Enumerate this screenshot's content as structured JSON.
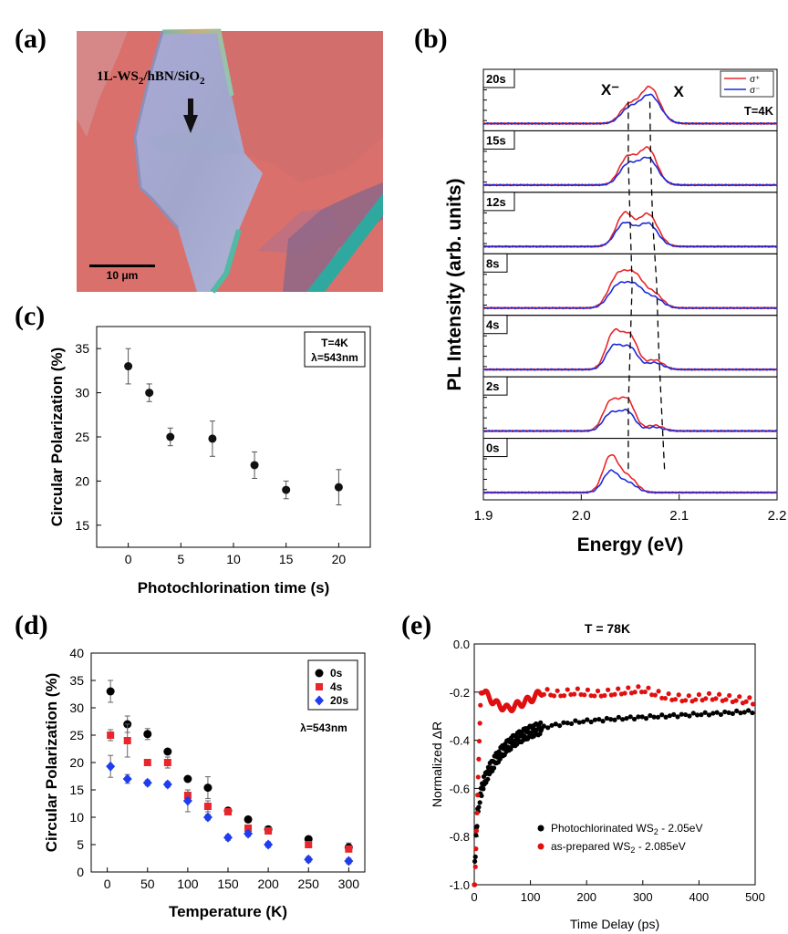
{
  "panel_labels": {
    "a": "(a)",
    "b": "(b)",
    "c": "(c)",
    "d": "(d)",
    "e": "(e)"
  },
  "colors": {
    "red": "#e8262b",
    "blue": "#1d2ad8",
    "black": "#000000",
    "diamond_blue": "#1e3cf0",
    "e_red": "#e01010",
    "substrate": "#d9706b",
    "flake": "#a8a9d2",
    "stripe": "#2fa8a0"
  },
  "micrograph": {
    "label_main": "1L-WS",
    "label_sub": "2",
    "label_mid": "/hBN/SiO",
    "label_sub2": "2",
    "scalebar_text": "10 μm"
  },
  "chart_data": [
    {
      "panel": "b",
      "type": "line",
      "xlabel": "Energy (eV)",
      "ylabel": "PL Intensity (arb. units)",
      "xlim": [
        1.9,
        2.2
      ],
      "xticks": [
        "1.9",
        "2.0",
        "2.1",
        "2.2"
      ],
      "temperature": "T=4K",
      "legend": {
        "series": [
          "σ⁺",
          "σ⁻"
        ],
        "placement": "top-right"
      },
      "peak_labels": {
        "trion": "X⁻",
        "exciton": "X"
      },
      "subpanels": [
        {
          "time": "20s",
          "sigma_plus_peaks": [
            {
              "e": 2.048,
              "a": 0.45,
              "w": 0.012
            },
            {
              "e": 2.07,
              "a": 0.95,
              "w": 0.014
            }
          ],
          "sigma_minus_peaks": [
            {
              "e": 2.048,
              "a": 0.35,
              "w": 0.012
            },
            {
              "e": 2.07,
              "a": 0.75,
              "w": 0.015
            }
          ]
        },
        {
          "time": "15s",
          "sigma_plus_peaks": [
            {
              "e": 2.047,
              "a": 0.7,
              "w": 0.012
            },
            {
              "e": 2.068,
              "a": 0.95,
              "w": 0.013
            }
          ],
          "sigma_minus_peaks": [
            {
              "e": 2.047,
              "a": 0.5,
              "w": 0.012
            },
            {
              "e": 2.068,
              "a": 0.7,
              "w": 0.014
            }
          ]
        },
        {
          "time": "12s",
          "sigma_plus_peaks": [
            {
              "e": 2.044,
              "a": 0.85,
              "w": 0.012
            },
            {
              "e": 2.068,
              "a": 0.85,
              "w": 0.014
            }
          ],
          "sigma_minus_peaks": [
            {
              "e": 2.044,
              "a": 0.6,
              "w": 0.013
            },
            {
              "e": 2.068,
              "a": 0.6,
              "w": 0.014
            }
          ]
        },
        {
          "time": "8s",
          "sigma_plus_peaks": [
            {
              "e": 2.037,
              "a": 0.8,
              "w": 0.013
            },
            {
              "e": 2.055,
              "a": 0.8,
              "w": 0.013
            },
            {
              "e": 2.075,
              "a": 0.35,
              "w": 0.012
            }
          ],
          "sigma_minus_peaks": [
            {
              "e": 2.037,
              "a": 0.55,
              "w": 0.013
            },
            {
              "e": 2.055,
              "a": 0.55,
              "w": 0.013
            },
            {
              "e": 2.075,
              "a": 0.25,
              "w": 0.012
            }
          ]
        },
        {
          "time": "4s",
          "sigma_plus_peaks": [
            {
              "e": 2.033,
              "a": 0.95,
              "w": 0.011
            },
            {
              "e": 2.05,
              "a": 0.85,
              "w": 0.011
            },
            {
              "e": 2.075,
              "a": 0.25,
              "w": 0.012
            }
          ],
          "sigma_minus_peaks": [
            {
              "e": 2.033,
              "a": 0.6,
              "w": 0.011
            },
            {
              "e": 2.05,
              "a": 0.55,
              "w": 0.011
            },
            {
              "e": 2.075,
              "a": 0.18,
              "w": 0.012
            }
          ]
        },
        {
          "time": "2s",
          "sigma_plus_peaks": [
            {
              "e": 2.03,
              "a": 0.75,
              "w": 0.011
            },
            {
              "e": 2.047,
              "a": 0.8,
              "w": 0.011
            },
            {
              "e": 2.075,
              "a": 0.15,
              "w": 0.012
            }
          ],
          "sigma_minus_peaks": [
            {
              "e": 2.03,
              "a": 0.45,
              "w": 0.011
            },
            {
              "e": 2.047,
              "a": 0.5,
              "w": 0.011
            },
            {
              "e": 2.075,
              "a": 0.1,
              "w": 0.012
            }
          ]
        },
        {
          "time": "0s",
          "sigma_plus_peaks": [
            {
              "e": 2.03,
              "a": 0.95,
              "w": 0.011
            },
            {
              "e": 2.048,
              "a": 0.4,
              "w": 0.012
            }
          ],
          "sigma_minus_peaks": [
            {
              "e": 2.03,
              "a": 0.55,
              "w": 0.011
            },
            {
              "e": 2.048,
              "a": 0.25,
              "w": 0.012
            }
          ]
        }
      ],
      "trion_guide": [
        {
          "time": "0s",
          "energy": 2.048
        },
        {
          "time": "2s",
          "energy": 2.048
        },
        {
          "time": "4s",
          "energy": 2.05
        },
        {
          "time": "8s",
          "energy": 2.052
        },
        {
          "time": "12s",
          "energy": 2.05
        },
        {
          "time": "15s",
          "energy": 2.048
        },
        {
          "time": "20s",
          "energy": 2.048
        }
      ],
      "exciton_guide": [
        {
          "time": "0s",
          "energy": 2.085
        },
        {
          "time": "2s",
          "energy": 2.082
        },
        {
          "time": "4s",
          "energy": 2.079
        },
        {
          "time": "8s",
          "energy": 2.077
        },
        {
          "time": "12s",
          "energy": 2.073
        },
        {
          "time": "15s",
          "energy": 2.071
        },
        {
          "time": "20s",
          "energy": 2.07
        }
      ]
    },
    {
      "panel": "c",
      "type": "scatter",
      "xlabel": "Photochlorination time (s)",
      "ylabel": "Circular Polarization (%)",
      "xlim": [
        -3,
        23
      ],
      "ylim": [
        12.5,
        37.5
      ],
      "xticks": [
        "0",
        "5",
        "10",
        "15",
        "20"
      ],
      "yticks": [
        "15",
        "20",
        "25",
        "30",
        "35"
      ],
      "annotation": [
        "T=4K",
        "λ=543nm"
      ],
      "x": [
        0,
        2,
        4,
        8,
        12,
        15,
        20
      ],
      "y": [
        33.0,
        30.0,
        25.0,
        24.8,
        21.8,
        19.0,
        19.3
      ],
      "err": [
        2.0,
        1.0,
        1.0,
        2.0,
        1.5,
        1.0,
        2.0
      ]
    },
    {
      "panel": "d",
      "type": "scatter",
      "xlabel": "Temperature (K)",
      "ylabel": "Circular Polarization (%)",
      "xlim": [
        -20,
        320
      ],
      "ylim": [
        0,
        40
      ],
      "xticks": [
        "0",
        "50",
        "100",
        "150",
        "200",
        "250",
        "300"
      ],
      "yticks": [
        "0",
        "5",
        "10",
        "15",
        "20",
        "25",
        "30",
        "35",
        "40"
      ],
      "annotation": "λ=543nm",
      "legend_placement": "top-right",
      "series": [
        {
          "name": "0s",
          "marker": "circle",
          "x": [
            4,
            25,
            50,
            75,
            100,
            125,
            150,
            175,
            200,
            250,
            300
          ],
          "y": [
            33.0,
            27.0,
            25.2,
            22.0,
            17.0,
            15.4,
            11.2,
            9.6,
            7.8,
            6.0,
            4.5
          ],
          "err": [
            2.0,
            1.5,
            1.0,
            0.5,
            0.5,
            2.0,
            0.5,
            0.5,
            0.5,
            0.5,
            0.8
          ]
        },
        {
          "name": "4s",
          "marker": "square",
          "x": [
            4,
            25,
            50,
            75,
            100,
            125,
            150,
            175,
            200,
            250,
            300
          ],
          "y": [
            25.0,
            24.0,
            20.0,
            20.0,
            14.0,
            12.0,
            11.0,
            8.0,
            7.5,
            5.0,
            4.2
          ],
          "err": [
            1.0,
            3.0,
            0.5,
            1.0,
            1.0,
            1.0,
            0.5,
            0.5,
            0.5,
            0.5,
            0.5
          ]
        },
        {
          "name": "20s",
          "marker": "diamond",
          "x": [
            4,
            25,
            50,
            75,
            100,
            125,
            150,
            175,
            200,
            250,
            300
          ],
          "y": [
            19.3,
            17.0,
            16.3,
            16.0,
            13.0,
            10.0,
            6.3,
            7.0,
            5.0,
            2.3,
            2.0
          ],
          "err": [
            2.0,
            0.8,
            0.5,
            0.5,
            2.0,
            0.5,
            0.5,
            0.5,
            0.5,
            0.5,
            0.5
          ]
        }
      ]
    },
    {
      "panel": "e",
      "type": "scatter",
      "title": "T = 78K",
      "xlabel": "Time Delay (ps)",
      "ylabel": "Normalized ΔR",
      "xlim": [
        0,
        500
      ],
      "ylim": [
        -1.0,
        0.0
      ],
      "xticks": [
        "0",
        "100",
        "200",
        "300",
        "400",
        "500"
      ],
      "yticks": [
        "-1.0",
        "-0.8",
        "-0.6",
        "-0.4",
        "-0.2",
        "0.0"
      ],
      "legend_placement": "lower-right",
      "series": [
        {
          "name": "Photochlorinated WS",
          "sub": "2",
          "suffix": " - 2.05eV",
          "marker": "circle",
          "curve": {
            "y0": -1.0,
            "fast": {
              "amp": 0.32,
              "tau": 4
            },
            "slow": {
              "amp": 0.34,
              "tau": 45
            },
            "drift": 0.00012
          }
        },
        {
          "name": "as-prepared WS",
          "sub": "2",
          "suffix": " - 2.085eV",
          "marker": "circle",
          "curve": {
            "rise": {
              "t0": 1,
              "t1": 12,
              "y0": -1.0,
              "y1": -0.18
            },
            "osc_points": [
              [
                15,
                -0.19
              ],
              [
                25,
                -0.22
              ],
              [
                40,
                -0.25
              ],
              [
                60,
                -0.27
              ],
              [
                80,
                -0.25
              ],
              [
                100,
                -0.23
              ],
              [
                120,
                -0.2
              ],
              [
                150,
                -0.21
              ],
              [
                180,
                -0.2
              ],
              [
                220,
                -0.21
              ],
              [
                260,
                -0.2
              ],
              [
                300,
                -0.19
              ],
              [
                340,
                -0.22
              ],
              [
                380,
                -0.23
              ],
              [
                420,
                -0.22
              ],
              [
                460,
                -0.23
              ],
              [
                500,
                -0.24
              ]
            ]
          }
        }
      ]
    }
  ]
}
